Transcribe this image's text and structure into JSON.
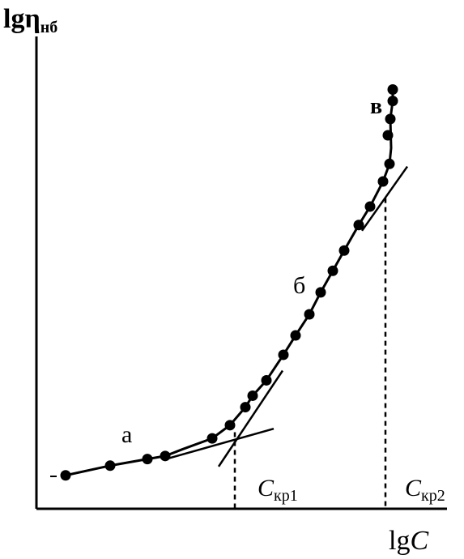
{
  "chart_data": {
    "type": "scatter",
    "title": "",
    "ylabel": {
      "main": "lgη",
      "sub": "нб"
    },
    "xlabel": {
      "main": "lg",
      "var": "C"
    },
    "region_labels": [
      "а",
      "б",
      "в"
    ],
    "critical_labels": [
      {
        "main": "C",
        "sub": "кр1"
      },
      {
        "main": "C",
        "sub": "кр2"
      }
    ],
    "xlim": [
      0,
      100
    ],
    "ylim": [
      0,
      100
    ],
    "points": [
      [
        7.2,
        7.6
      ],
      [
        18.2,
        9.8
      ],
      [
        27.4,
        11.3
      ],
      [
        31.8,
        12.0
      ],
      [
        43.4,
        16.0
      ],
      [
        47.8,
        19.0
      ],
      [
        51.6,
        23.1
      ],
      [
        53.4,
        25.7
      ],
      [
        56.8,
        29.2
      ],
      [
        61.0,
        35.0
      ],
      [
        64.0,
        39.4
      ],
      [
        67.4,
        44.2
      ],
      [
        70.2,
        49.2
      ],
      [
        73.2,
        54.1
      ],
      [
        76.0,
        58.7
      ],
      [
        79.6,
        64.5
      ],
      [
        82.4,
        68.7
      ],
      [
        85.6,
        74.4
      ],
      [
        87.2,
        78.4
      ],
      [
        86.8,
        84.9
      ],
      [
        87.4,
        88.6
      ],
      [
        88.0,
        92.7
      ],
      [
        88.0,
        95.3
      ]
    ],
    "curve": [
      [
        7.2,
        7.6
      ],
      [
        18.2,
        9.8
      ],
      [
        27.4,
        11.3
      ],
      [
        31.8,
        12.0
      ],
      [
        36,
        13.5
      ],
      [
        43.4,
        16.0
      ],
      [
        47.8,
        19.0
      ],
      [
        51.6,
        23.1
      ],
      [
        53.4,
        25.7
      ],
      [
        56.8,
        29.2
      ],
      [
        61.0,
        35.0
      ],
      [
        64.0,
        39.4
      ],
      [
        67.4,
        44.2
      ],
      [
        70.2,
        49.2
      ],
      [
        73.2,
        54.1
      ],
      [
        76.0,
        58.7
      ],
      [
        79.6,
        64.5
      ],
      [
        82.4,
        68.7
      ],
      [
        85.6,
        74.4
      ],
      [
        87.2,
        78.4
      ],
      [
        87.6,
        82.0
      ],
      [
        87.4,
        88.6
      ],
      [
        88.0,
        92.7
      ],
      [
        88.0,
        95.3
      ]
    ],
    "tangents": [
      {
        "from": [
          32.4,
          11.4
        ],
        "to": [
          58.6,
          18.2
        ]
      },
      {
        "from": [
          45.0,
          9.6
        ],
        "to": [
          60.8,
          31.4
        ]
      },
      {
        "from": [
          80.4,
          63.2
        ],
        "to": [
          91.6,
          77.8
        ]
      }
    ],
    "critical_points": [
      {
        "x": 49.0,
        "y": 17.4
      },
      {
        "x": 86.2,
        "y": 70.6
      }
    ],
    "grid": false,
    "legend": "none"
  }
}
